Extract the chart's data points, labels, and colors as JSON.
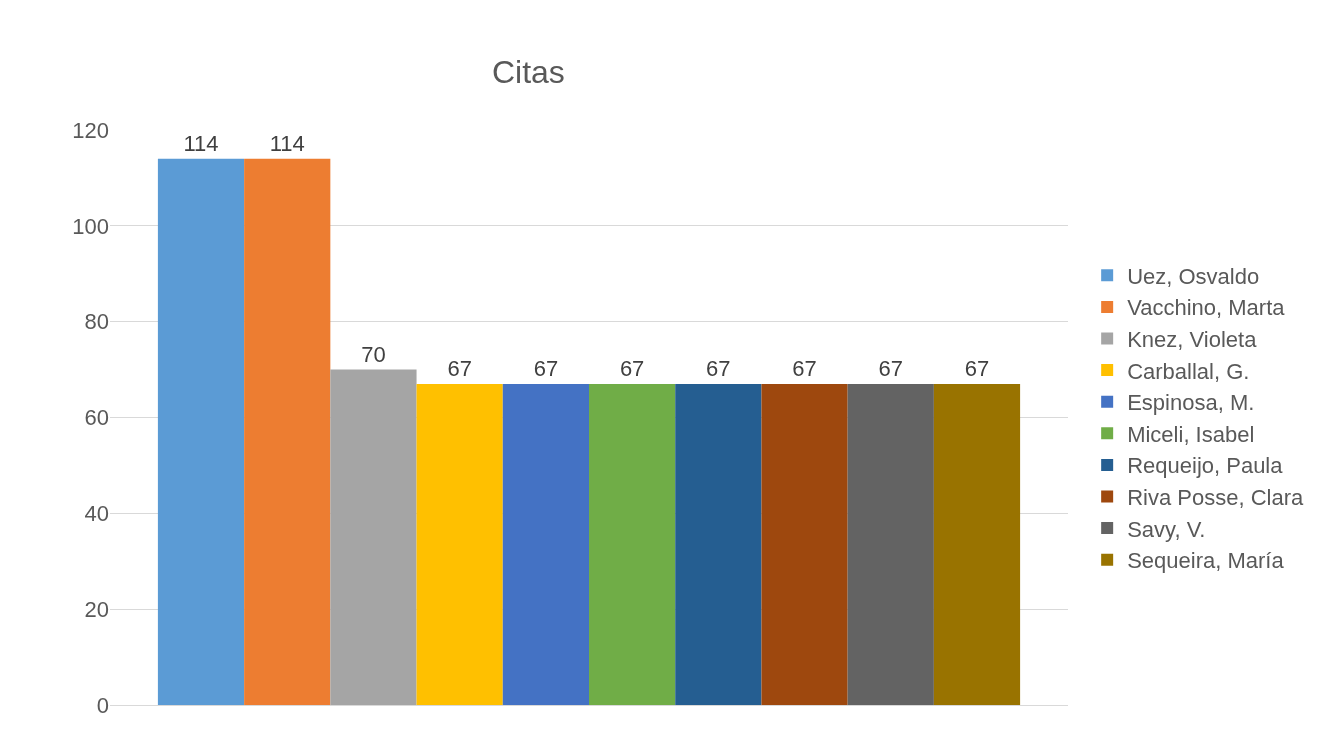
{
  "chart_data": {
    "type": "bar",
    "title": "Citas",
    "categories": [
      null
    ],
    "series": [
      {
        "name": "Uez, Osvaldo",
        "color": "#5b9bd5",
        "values": [
          114
        ]
      },
      {
        "name": "Vacchino, Marta",
        "color": "#ed7d31",
        "values": [
          114
        ]
      },
      {
        "name": "Knez, Violeta",
        "color": "#a5a5a5",
        "values": [
          70
        ]
      },
      {
        "name": "Carballal, G.",
        "color": "#ffc000",
        "values": [
          67
        ]
      },
      {
        "name": "Espinosa, M.",
        "color": "#4472c4",
        "values": [
          67
        ]
      },
      {
        "name": "Miceli, Isabel",
        "color": "#70ad47",
        "values": [
          67
        ]
      },
      {
        "name": "Requeijo, Paula",
        "color": "#255e91",
        "values": [
          67
        ]
      },
      {
        "name": "Riva Posse, Clara",
        "color": "#9e480e",
        "values": [
          67
        ]
      },
      {
        "name": "Savy, V.",
        "color": "#636363",
        "values": [
          67
        ]
      },
      {
        "name": "Sequeira, María",
        "color": "#997300",
        "values": [
          67
        ]
      }
    ],
    "ylim": [
      0,
      120
    ],
    "yticks": [
      0,
      20,
      40,
      60,
      80,
      100,
      120
    ],
    "grid": "y",
    "legend": "right",
    "data_labels": true,
    "tick_labels": "y"
  }
}
